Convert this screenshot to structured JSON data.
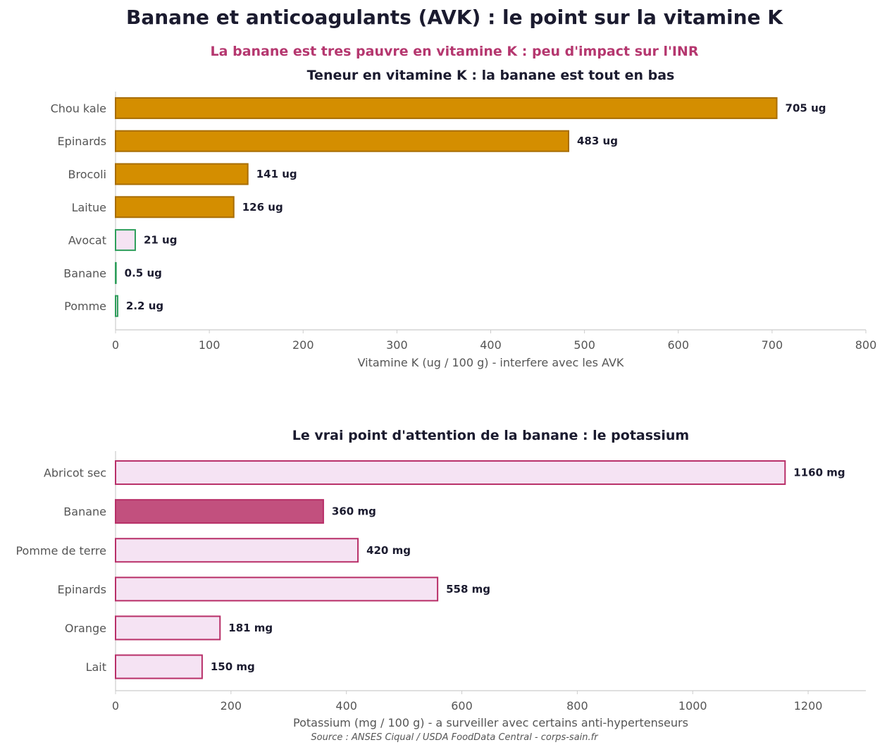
{
  "title": "Banane et anticoagulants (AVK) : le point sur la vitamine K",
  "subtitle": "La banane est tres pauvre en vitamine K : peu d'impact sur l'INR",
  "source": "Source : ANSES Ciqual / USDA FoodData Central - corps-sain.fr",
  "colors": {
    "high": "#d48e00",
    "high_edge": "#a86d00",
    "low_fill": "#f5e3f3",
    "low_edge_green": "#2e9e5b",
    "potassium_edge": "#b82f68",
    "banana_fill": "#c2507e"
  },
  "chart_data": [
    {
      "type": "bar",
      "orientation": "horizontal",
      "title": "Teneur en vitamine K : la banane est tout en bas",
      "xlabel": "Vitamine K (ug / 100 g) - interfere avec les AVK",
      "xlim": [
        0,
        800
      ],
      "xticks": [
        0,
        100,
        200,
        300,
        400,
        500,
        600,
        700,
        800
      ],
      "categories": [
        "Chou kale",
        "Epinards",
        "Brocoli",
        "Laitue",
        "Avocat",
        "Banane",
        "Pomme"
      ],
      "values": [
        705,
        483,
        141,
        126,
        21,
        0.5,
        2.2
      ],
      "value_labels": [
        "705 ug",
        "483 ug",
        "141 ug",
        "126 ug",
        "21 ug",
        "0.5 ug",
        "2.2 ug"
      ],
      "bar_style": [
        "high",
        "high",
        "high",
        "high",
        "low",
        "low",
        "low"
      ],
      "grid": false
    },
    {
      "type": "bar",
      "orientation": "horizontal",
      "title": "Le vrai point d'attention de la banane : le potassium",
      "xlabel": "Potassium (mg / 100 g) - a surveiller avec certains anti-hypertenseurs",
      "xlim": [
        0,
        1300
      ],
      "xticks": [
        0,
        200,
        400,
        600,
        800,
        1000,
        1200
      ],
      "categories": [
        "Abricot sec",
        "Banane",
        "Pomme de terre",
        "Epinards",
        "Orange",
        "Lait"
      ],
      "values": [
        1160,
        360,
        420,
        558,
        181,
        150
      ],
      "value_labels": [
        "1160 mg",
        "360 mg",
        "420 mg",
        "558 mg",
        "181 mg",
        "150 mg"
      ],
      "highlight": "Banane",
      "grid": false
    }
  ]
}
